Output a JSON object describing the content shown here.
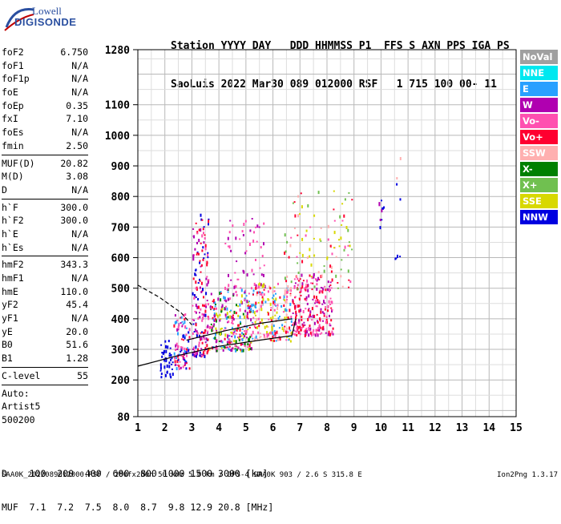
{
  "logo": {
    "line1": "Lowell",
    "line2": "DIGISONDE"
  },
  "header": {
    "labels": "Station YYYY DAY   DDD HHMMSS P1  FFS S AXN PPS IGA PS",
    "values": "SaoLuis 2022 Mar30 089 012000 RSF   1 715 100 00- 11"
  },
  "params": [
    [
      {
        "name": "foF2",
        "value": "6.750"
      },
      {
        "name": "foF1",
        "value": "N/A"
      },
      {
        "name": "foF1p",
        "value": "N/A"
      },
      {
        "name": "foE",
        "value": "N/A"
      },
      {
        "name": "foEp",
        "value": "0.35"
      },
      {
        "name": "fxI",
        "value": "7.10"
      },
      {
        "name": "foEs",
        "value": "N/A"
      },
      {
        "name": "fmin",
        "value": "2.50"
      }
    ],
    [
      {
        "name": "MUF(D)",
        "value": "20.82"
      },
      {
        "name": "M(D)",
        "value": "3.08"
      },
      {
        "name": "D",
        "value": "N/A"
      }
    ],
    [
      {
        "name": "h`F",
        "value": "300.0"
      },
      {
        "name": "h`F2",
        "value": "300.0"
      },
      {
        "name": "h`E",
        "value": "N/A"
      },
      {
        "name": "h`Es",
        "value": "N/A"
      }
    ],
    [
      {
        "name": "hmF2",
        "value": "343.3"
      },
      {
        "name": "hmF1",
        "value": "N/A"
      },
      {
        "name": "hmE",
        "value": "110.0"
      },
      {
        "name": "yF2",
        "value": "45.4"
      },
      {
        "name": "yF1",
        "value": "N/A"
      },
      {
        "name": "yE",
        "value": "20.0"
      },
      {
        "name": "B0",
        "value": "51.6"
      },
      {
        "name": "B1",
        "value": "1.28"
      }
    ],
    [
      {
        "name": "C-level",
        "value": "55"
      }
    ]
  ],
  "autoscale": [
    "Auto:",
    "Artist5",
    "500200"
  ],
  "legend": [
    {
      "label": "NoVal",
      "color": "#a0a0a0"
    },
    {
      "label": "NNE",
      "color": "#00e8f0"
    },
    {
      "label": "E",
      "color": "#28a0ff"
    },
    {
      "label": "W",
      "color": "#b000b0"
    },
    {
      "label": "Vo-",
      "color": "#ff50b0"
    },
    {
      "label": "Vo+",
      "color": "#ff0030"
    },
    {
      "label": "SSW",
      "color": "#ffb0b0"
    },
    {
      "label": "X-",
      "color": "#008000"
    },
    {
      "label": "X+",
      "color": "#70c050"
    },
    {
      "label": "SSE",
      "color": "#d8d800"
    },
    {
      "label": "NNW",
      "color": "#0000e0"
    }
  ],
  "dmuf": {
    "d_line": "D    100  200  400  600  800 1000 1500 3000 [km]",
    "muf_line": "MUF  7.1  7.2  7.5  8.0  8.7  9.8 12.9 20.8 [MHz]"
  },
  "footer": "SAA0K_2022089012000.RSF / 280fx256h 50 kHz 5.0 km / DPS-4 SAA0K 903 / 2.6 S 315.8 E",
  "version": "Ion2Png 1.3.17",
  "chart_data": {
    "type": "scatter",
    "xlim": [
      1,
      15
    ],
    "ylim": [
      80,
      1280
    ],
    "x_ticks": [
      1,
      2,
      3,
      4,
      5,
      6,
      7,
      8,
      9,
      10,
      11,
      12,
      13,
      14,
      15
    ],
    "y_ticks": [
      80,
      200,
      300,
      400,
      500,
      600,
      700,
      800,
      900,
      1000,
      1100,
      1280
    ],
    "grid": true,
    "regions": [
      {
        "x": [
          2.3,
          2.9
        ],
        "y": [
          240,
          420
        ],
        "colors": [
          "#0000e0",
          "#28a0ff",
          "#ff0030",
          "#ff50b0",
          "#b000b0"
        ],
        "density": 90
      },
      {
        "x": [
          3.0,
          3.6
        ],
        "y": [
          280,
          750
        ],
        "colors": [
          "#b000b0",
          "#ff50b0",
          "#ff0030",
          "#0000e0"
        ],
        "density": 180
      },
      {
        "x": [
          3.6,
          5.2
        ],
        "y": [
          300,
          500
        ],
        "colors": [
          "#b000b0",
          "#ff50b0",
          "#ff0030",
          "#d8d800",
          "#28a0ff",
          "#008000"
        ],
        "density": 260
      },
      {
        "x": [
          4.2,
          5.7
        ],
        "y": [
          500,
          730
        ],
        "colors": [
          "#b000b0",
          "#ff50b0"
        ],
        "density": 60
      },
      {
        "x": [
          5.2,
          6.7
        ],
        "y": [
          330,
          520
        ],
        "colors": [
          "#ff0030",
          "#ff50b0",
          "#d8d800",
          "#ffb0b0",
          "#28a0ff"
        ],
        "density": 200
      },
      {
        "x": [
          6.7,
          8.2
        ],
        "y": [
          350,
          550
        ],
        "colors": [
          "#ff0030",
          "#ff50b0",
          "#b000b0"
        ],
        "density": 220
      },
      {
        "x": [
          6.4,
          8.9
        ],
        "y": [
          500,
          820
        ],
        "colors": [
          "#d8d800",
          "#70c050",
          "#ffb0b0",
          "#ff50b0",
          "#ff0030"
        ],
        "density": 110
      },
      {
        "x": [
          1.8,
          2.3
        ],
        "y": [
          210,
          340
        ],
        "colors": [
          "#0000e0"
        ],
        "density": 40
      },
      {
        "x": [
          10.5,
          10.7
        ],
        "y": [
          600,
          980
        ],
        "colors": [
          "#ffb0b0",
          "#0000e0"
        ],
        "density": 8
      },
      {
        "x": [
          9.9,
          10.1
        ],
        "y": [
          700,
          800
        ],
        "colors": [
          "#0000e0",
          "#b000b0"
        ],
        "density": 10
      }
    ],
    "traces": [
      {
        "name": "profile_lower",
        "color": "#000000",
        "dash": false,
        "points": [
          [
            1.0,
            245
          ],
          [
            2.5,
            280
          ],
          [
            4.0,
            310
          ],
          [
            5.5,
            330
          ],
          [
            6.7,
            345
          ],
          [
            6.85,
            400
          ]
        ]
      },
      {
        "name": "profile_upper",
        "color": "#000000",
        "dash": false,
        "points": [
          [
            2.8,
            330
          ],
          [
            4.2,
            360
          ],
          [
            5.5,
            385
          ],
          [
            6.7,
            400
          ]
        ]
      },
      {
        "name": "profile_dashed",
        "color": "#000000",
        "dash": true,
        "points": [
          [
            1.0,
            510
          ],
          [
            1.8,
            470
          ],
          [
            2.6,
            420
          ],
          [
            3.0,
            380
          ]
        ]
      }
    ]
  }
}
